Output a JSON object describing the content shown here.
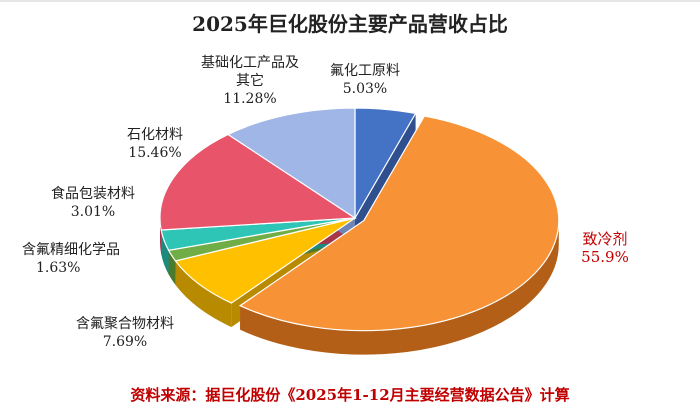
{
  "chart_data": {
    "type": "pie",
    "title": "2025年巨化股份主要产品营收占比",
    "source_note": "资料来源：据巨化股份《2025年1-12月主要经营数据公告》计算",
    "slices": [
      {
        "label": "氟化工原料",
        "value": 5.03,
        "value_label": "5.03%",
        "color": "#4472c4",
        "side": "#2f4f8f"
      },
      {
        "label": "致冷剂",
        "value": 55.9,
        "value_label": "55.9%",
        "color": "#f79236",
        "side": "#b35f17"
      },
      {
        "label": "含氟聚合物材料",
        "value": 7.69,
        "value_label": "7.69%",
        "color": "#ffc000",
        "side": "#b88a00"
      },
      {
        "label": "含氟精细化学品",
        "value": 1.63,
        "value_label": "1.63%",
        "color": "#70ad47",
        "side": "#4a7a2c"
      },
      {
        "label": "食品包装材料",
        "value": 3.01,
        "value_label": "3.01%",
        "color": "#2ec4b6",
        "side": "#1d8a80"
      },
      {
        "label": "石化材料",
        "value": 15.46,
        "value_label": "15.46%",
        "color": "#e8546a",
        "side": "#a6354a"
      },
      {
        "label": "基础化工产品及其它",
        "value": 11.28,
        "value_label": "11.28%",
        "color": "#9fb6e6",
        "side": "#6f85b5"
      }
    ],
    "highlight": "致冷剂",
    "legend": "none"
  }
}
